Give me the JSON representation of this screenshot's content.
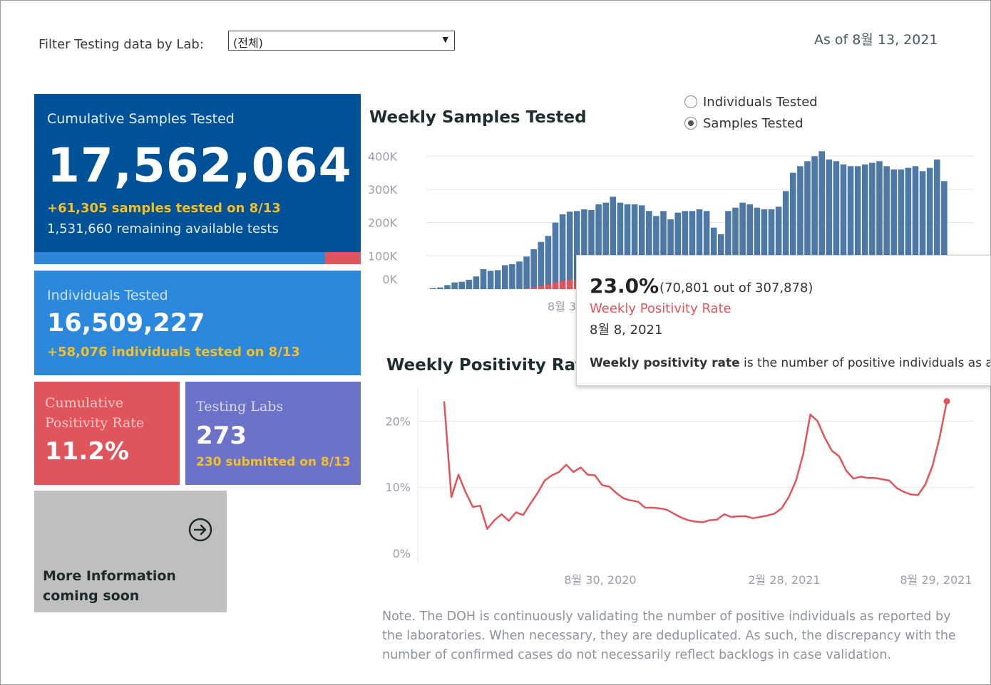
{
  "filter": {
    "label": "Filter Testing data by Lab:",
    "value": "(전체)"
  },
  "as_of": "As of 8월 13, 2021",
  "tiles": {
    "cumulative_samples": {
      "title": "Cumulative Samples Tested",
      "value": "17,562,064",
      "today": "+61,305 samples tested on 8/13",
      "remaining": "1,531,660 remaining available tests",
      "used_fraction": 0.89
    },
    "individuals": {
      "title": "Individuals Tested",
      "value": "16,509,227",
      "today": "+58,076  individuals  tested on 8/13"
    },
    "positivity": {
      "title": "Cumulative Positivity Rate",
      "value": "11.2%"
    },
    "labs": {
      "title": "Testing Labs",
      "value": "273",
      "today": "230 submitted on 8/13"
    },
    "more_info": {
      "text_line1": "More Information",
      "text_line2": "coming soon",
      "icon": "arrow-circle-right-icon"
    }
  },
  "colors": {
    "navy": "#005298",
    "blue": "#2b88dc",
    "red": "#e0555b",
    "purple": "#6b72c8",
    "gray": "#bfbfbf",
    "bar": "#4e79a7"
  },
  "weekly_samples": {
    "title": "Weekly Samples Tested",
    "options": [
      "Individuals Tested",
      "Samples Tested"
    ],
    "selected": "Samples Tested"
  },
  "weekly_positivity": {
    "title": "Weekly Positivity Rate"
  },
  "tooltip": {
    "pct": "23.0%",
    "detail": "(70,801 out of  307,878)",
    "metric": "Weekly Positivity Rate",
    "date": "8월 8, 2021",
    "def_bold": "Weekly positivity rate",
    "def_rest": " is the number of positive individuals as a per"
  },
  "note": "Note. The DOH is continuously validating the number of positive individuals as reported by the laboratories. When necessary, they are deduplicated. As such, the discrepancy with the number of confirmed cases do not necessarily reflect backlogs in case validation.",
  "chart_data": [
    {
      "type": "bar",
      "title": "Weekly Samples Tested",
      "ylim": [
        0,
        420000
      ],
      "y_ticks": [
        "0K",
        "100K",
        "200K",
        "300K",
        "400K"
      ],
      "x_ticks": [
        "8월 3"
      ],
      "series": [
        {
          "name": "Samples Tested",
          "values": [
            3000,
            5000,
            12000,
            20000,
            22000,
            28000,
            38000,
            60000,
            55000,
            57000,
            72000,
            75000,
            83000,
            98000,
            120000,
            142000,
            160000,
            200000,
            225000,
            233000,
            235000,
            240000,
            238000,
            255000,
            260000,
            278000,
            260000,
            255000,
            255000,
            252000,
            235000,
            220000,
            235000,
            210000,
            230000,
            235000,
            235000,
            240000,
            235000,
            185000,
            165000,
            235000,
            245000,
            260000,
            255000,
            245000,
            240000,
            240000,
            248000,
            295000,
            350000,
            370000,
            385000,
            400000,
            415000,
            390000,
            385000,
            375000,
            370000,
            370000,
            375000,
            380000,
            385000,
            370000,
            360000,
            360000,
            365000,
            370000,
            355000,
            365000,
            390000,
            325000
          ]
        },
        {
          "name": "Positive",
          "values": [
            0,
            0,
            0,
            0,
            0,
            0,
            0,
            0,
            0,
            0,
            0,
            1000,
            2000,
            3000,
            5000,
            9000,
            13000,
            20000,
            25000,
            28000,
            27000
          ]
        }
      ]
    },
    {
      "type": "line",
      "title": "Weekly Positivity Rate",
      "ylim": [
        0,
        25
      ],
      "y_ticks": [
        "0%",
        "10%",
        "20%"
      ],
      "x_ticks": [
        "8월 30, 2020",
        "2월 28, 2021",
        "8월 29, 2021"
      ],
      "series": [
        {
          "name": "Weekly Positivity Rate",
          "values": [
            23.0,
            8.5,
            11.9,
            9.2,
            7.0,
            7.2,
            3.7,
            5.0,
            5.9,
            4.9,
            6.2,
            5.8,
            7.5,
            9.1,
            11.0,
            11.8,
            12.3,
            13.4,
            12.3,
            13.0,
            11.9,
            11.8,
            10.3,
            10.1,
            9.1,
            8.3,
            8.0,
            7.8,
            6.9,
            6.9,
            6.8,
            6.6,
            6.0,
            5.4,
            5.0,
            4.8,
            4.7,
            5.0,
            5.1,
            5.9,
            5.5,
            5.6,
            5.6,
            5.3,
            5.5,
            5.7,
            6.0,
            6.8,
            8.5,
            11.0,
            15.0,
            21.0,
            20.0,
            17.5,
            15.5,
            14.7,
            12.5,
            11.3,
            11.6,
            11.4,
            11.4,
            11.2,
            11.0,
            9.9,
            9.3,
            8.9,
            8.8,
            10.4,
            13.2,
            17.5,
            23.0
          ]
        }
      ]
    }
  ]
}
